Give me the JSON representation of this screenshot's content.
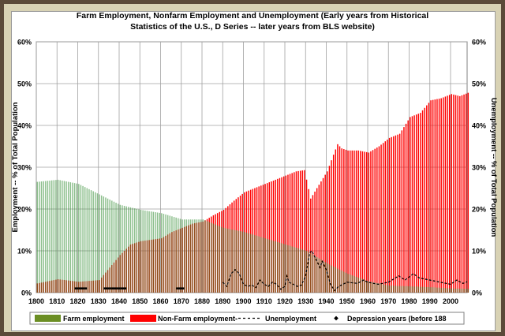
{
  "title_line1": "Farm Employment, Nonfarm Employment and Unemployment  (Early years from Historical",
  "title_line2": "Statistics of the U.S., D Series -- later years from BLS website)",
  "chart_data": {
    "type": "bar",
    "title": "Farm Employment, Nonfarm Employment and Unemployment  (Early years from Historical Statistics of the U.S., D Series -- later years from BLS website)",
    "ylabel": "Employment -- % of Total Population",
    "ylabel_right": "Unemployment -- % of Total Population",
    "ylim": [
      0,
      60
    ],
    "xlim": [
      1800,
      2008
    ],
    "y_ticks": [
      "0%",
      "10%",
      "20%",
      "30%",
      "40%",
      "50%",
      "60%"
    ],
    "x_ticks": [
      "1800",
      "1810",
      "1820",
      "1830",
      "1840",
      "1850",
      "1860",
      "1870",
      "1880",
      "1890",
      "1900",
      "1910",
      "1920",
      "1930",
      "1940",
      "1950",
      "1960",
      "1970",
      "1980",
      "1990",
      "2000"
    ],
    "grid": true,
    "legend_position": "bottom",
    "legend": [
      {
        "label": "Farm employment",
        "color": "#6b8e23"
      },
      {
        "label": "Non-Farm employment-",
        "color": "#ff0000"
      },
      {
        "label": "Unemployment",
        "color": "#000000"
      },
      {
        "label": "Depression years (before 188",
        "color": "#000000"
      }
    ],
    "series": [
      {
        "name": "Farm employment",
        "color": "#2e8b2e",
        "points": [
          [
            1800,
            26.5
          ],
          [
            1810,
            27
          ],
          [
            1820,
            26
          ],
          [
            1830,
            23.5
          ],
          [
            1840,
            21
          ],
          [
            1850,
            19.8
          ],
          [
            1860,
            19
          ],
          [
            1870,
            17.5
          ],
          [
            1880,
            17.5
          ],
          [
            1890,
            15.5
          ],
          [
            1900,
            14.5
          ],
          [
            1910,
            13
          ],
          [
            1920,
            11.5
          ],
          [
            1930,
            10
          ],
          [
            1940,
            7
          ],
          [
            1950,
            4.5
          ],
          [
            1960,
            2.7
          ],
          [
            1970,
            1.7
          ],
          [
            1980,
            1.5
          ],
          [
            1990,
            1.3
          ],
          [
            2000,
            1.0
          ],
          [
            2008,
            0.9
          ]
        ]
      },
      {
        "name": "Non-Farm employment-",
        "color": "#ff0000",
        "points": [
          [
            1800,
            2.2
          ],
          [
            1810,
            3.2
          ],
          [
            1820,
            2.6
          ],
          [
            1830,
            3.0
          ],
          [
            1835,
            6
          ],
          [
            1840,
            9
          ],
          [
            1845,
            11.5
          ],
          [
            1850,
            12.3
          ],
          [
            1860,
            13
          ],
          [
            1865,
            14.5
          ],
          [
            1870,
            15.5
          ],
          [
            1875,
            16.5
          ],
          [
            1880,
            17
          ],
          [
            1885,
            18.5
          ],
          [
            1890,
            19.8
          ],
          [
            1895,
            22
          ],
          [
            1900,
            24
          ],
          [
            1905,
            25
          ],
          [
            1910,
            26
          ],
          [
            1915,
            27
          ],
          [
            1920,
            28
          ],
          [
            1925,
            29
          ],
          [
            1929,
            29.3
          ],
          [
            1932,
            22.5
          ],
          [
            1935,
            25
          ],
          [
            1940,
            29
          ],
          [
            1943,
            33
          ],
          [
            1945,
            35.5
          ],
          [
            1947,
            34.5
          ],
          [
            1950,
            34
          ],
          [
            1955,
            34
          ],
          [
            1960,
            33.5
          ],
          [
            1965,
            35
          ],
          [
            1970,
            37
          ],
          [
            1975,
            38
          ],
          [
            1980,
            42
          ],
          [
            1985,
            43
          ],
          [
            1990,
            46
          ],
          [
            1995,
            46.5
          ],
          [
            2000,
            47.5
          ],
          [
            2004,
            47
          ],
          [
            2008,
            47.8
          ]
        ]
      },
      {
        "name": "Unemployment",
        "color": "#000000",
        "points": [
          [
            1890,
            2.5
          ],
          [
            1892,
            1.5
          ],
          [
            1894,
            4.5
          ],
          [
            1896,
            5.5
          ],
          [
            1898,
            4.5
          ],
          [
            1900,
            2
          ],
          [
            1902,
            1.5
          ],
          [
            1904,
            1.8
          ],
          [
            1906,
            1.2
          ],
          [
            1908,
            3
          ],
          [
            1910,
            2
          ],
          [
            1912,
            1.5
          ],
          [
            1914,
            2.5
          ],
          [
            1916,
            2
          ],
          [
            1918,
            0.8
          ],
          [
            1920,
            1.5
          ],
          [
            1921,
            4
          ],
          [
            1922,
            2.5
          ],
          [
            1924,
            2
          ],
          [
            1926,
            1.5
          ],
          [
            1928,
            1.8
          ],
          [
            1930,
            4
          ],
          [
            1932,
            9.5
          ],
          [
            1933,
            10
          ],
          [
            1935,
            8
          ],
          [
            1937,
            6
          ],
          [
            1938,
            7.5
          ],
          [
            1940,
            5.5
          ],
          [
            1942,
            2
          ],
          [
            1944,
            0.5
          ],
          [
            1946,
            1.5
          ],
          [
            1950,
            2.5
          ],
          [
            1955,
            2.2
          ],
          [
            1958,
            3
          ],
          [
            1960,
            2.5
          ],
          [
            1965,
            2
          ],
          [
            1970,
            2.5
          ],
          [
            1975,
            4
          ],
          [
            1978,
            3
          ],
          [
            1982,
            4.5
          ],
          [
            1985,
            3.5
          ],
          [
            1990,
            3
          ],
          [
            1995,
            2.5
          ],
          [
            2000,
            2
          ],
          [
            2003,
            3
          ],
          [
            2006,
            2.2
          ],
          [
            2008,
            2.6
          ]
        ]
      }
    ],
    "depression_years": [
      1819,
      1820,
      1821,
      1822,
      1823,
      1824,
      1833,
      1834,
      1835,
      1836,
      1837,
      1838,
      1839,
      1840,
      1841,
      1842,
      1843,
      1868,
      1869,
      1870,
      1871
    ]
  }
}
